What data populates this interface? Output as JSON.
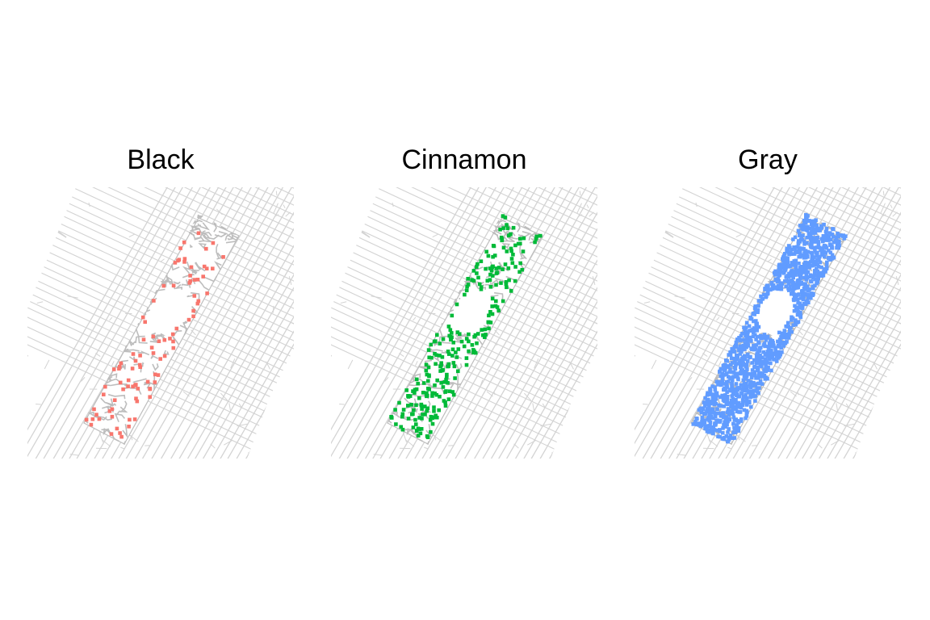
{
  "facets": [
    {
      "title": "Black",
      "color": "#F8766D",
      "density": 0.09
    },
    {
      "title": "Cinnamon",
      "color": "#00BA38",
      "density": 0.3
    },
    {
      "title": "Gray",
      "color": "#619CFF",
      "density": 1.0
    }
  ],
  "colors": {
    "street": "#d3d3d3",
    "park_path": "#bdbdbd",
    "background": "#ffffff"
  }
}
